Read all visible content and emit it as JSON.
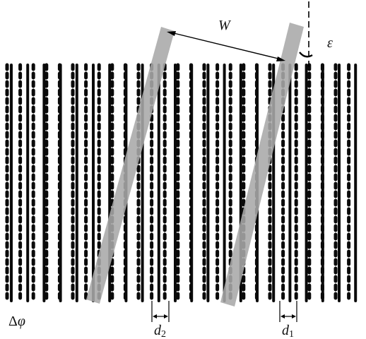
{
  "labels": {
    "w": "W",
    "epsilon": "ε",
    "delta_phi_prefix": "Δ",
    "delta_phi_var": "φ",
    "d2_var": "d",
    "d2_sub": "2",
    "d1_var": "d",
    "d1_sub": "1"
  },
  "colors": {
    "stripe": "#0a0a0a",
    "band": "#a9a9a9",
    "background": "#ffffff"
  }
}
